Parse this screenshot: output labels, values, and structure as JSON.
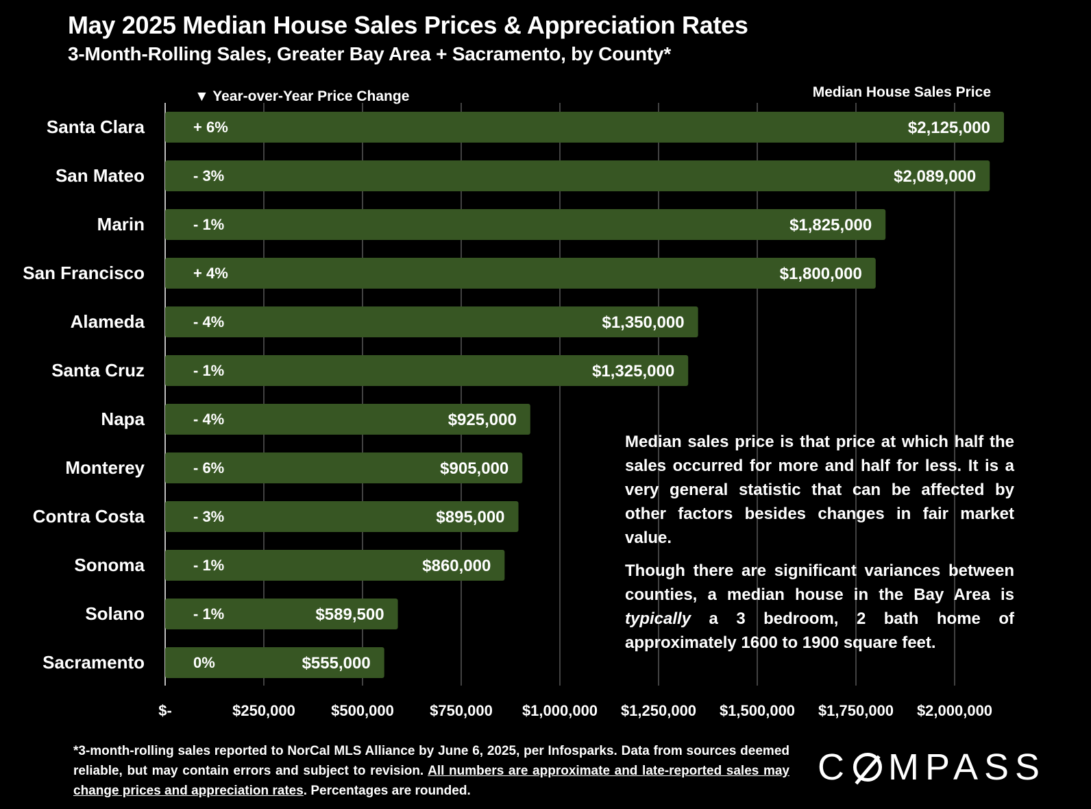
{
  "header": {
    "title": "May 2025 Median House Sales Prices & Appreciation Rates",
    "subtitle": "3-Month-Rolling Sales, Greater Bay Area + Sacramento, by County*"
  },
  "legend": {
    "yoy_label": "▼ Year-over-Year Price Change",
    "price_label": "Median House Sales Price"
  },
  "chart_data": {
    "type": "bar",
    "orientation": "horizontal",
    "categories": [
      "Santa Clara",
      "San Mateo",
      "Marin",
      "San Francisco",
      "Alameda",
      "Santa Cruz",
      "Napa",
      "Monterey",
      "Contra Costa",
      "Sonoma",
      "Solano",
      "Sacramento"
    ],
    "values": [
      2125000,
      2089000,
      1825000,
      1800000,
      1350000,
      1325000,
      925000,
      905000,
      895000,
      860000,
      589500,
      555000
    ],
    "value_labels": [
      "$2,125,000",
      "$2,089,000",
      "$1,825,000",
      "$1,800,000",
      "$1,350,000",
      "$1,325,000",
      "$925,000",
      "$905,000",
      "$895,000",
      "$860,000",
      "$589,500",
      "$555,000"
    ],
    "yoy_change_labels": [
      "+ 6%",
      "- 3%",
      "- 1%",
      "+ 4%",
      "- 4%",
      "- 1%",
      "- 4%",
      "- 6%",
      "- 3%",
      "- 1%",
      "- 1%",
      "0%"
    ],
    "xlim": [
      0,
      2000000
    ],
    "x_ticks": [
      0,
      250000,
      500000,
      750000,
      1000000,
      1250000,
      1500000,
      1750000,
      2000000
    ],
    "x_tick_labels": [
      "$-",
      "$250,000",
      "$500,000",
      "$750,000",
      "$1,000,000",
      "$1,250,000",
      "$1,500,000",
      "$1,750,000",
      "$2,000,000"
    ],
    "grid": true,
    "bar_color": "#375623"
  },
  "notes": {
    "p1": "Median sales price is that price at which half the sales occurred for more and half for less. It is a very general statistic that can be affected by other factors besides changes in fair market value.",
    "p2_a": "Though there are significant variances between counties, a median house in the Bay Area is ",
    "p2_em": "typically",
    "p2_b": " a 3 bedroom, 2 bath home of approximately 1600 to 1900 square feet."
  },
  "footnote": {
    "a": "*3-month-rolling sales reported to NorCal MLS Alliance by June 6, 2025, per Infosparks. Data from sources deemed reliable, but may contain errors and subject to revision. ",
    "u": "All numbers are approximate and late-reported sales may change prices and appreciation rates",
    "b": ". Percentages are rounded."
  },
  "logo": {
    "pre": "C",
    "post": "MPASS"
  }
}
